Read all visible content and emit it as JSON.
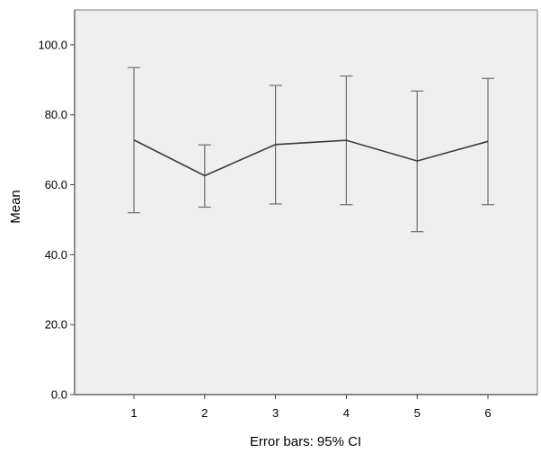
{
  "chart_data": {
    "type": "line",
    "x": [
      "1",
      "2",
      "3",
      "4",
      "5",
      "6"
    ],
    "series": [
      {
        "values": [
          72.8,
          62.6,
          71.5,
          72.7,
          66.8,
          72.4
        ],
        "ci_lower": [
          52.0,
          53.6,
          54.5,
          54.3,
          46.6,
          54.3
        ],
        "ci_upper": [
          93.5,
          71.4,
          88.4,
          91.1,
          86.8,
          90.4
        ]
      }
    ],
    "ylabel": "Mean",
    "xlabel": "",
    "ylim": [
      0,
      110
    ],
    "yticks": [
      "0.0",
      "20.0",
      "40.0",
      "60.0",
      "80.0",
      "100.0"
    ],
    "caption": "Error bars: 95% CI",
    "grid": false,
    "legend": "none",
    "colors": {
      "plot_background": "#efefef",
      "line": "#3a3a3a",
      "error_bar": "#6e6e6e",
      "axis": "#444444"
    }
  }
}
